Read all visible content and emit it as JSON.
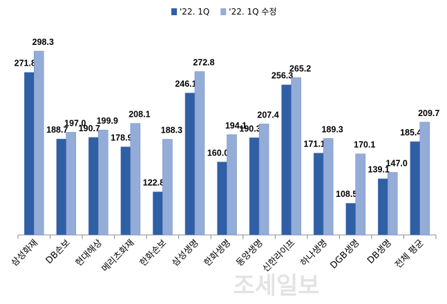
{
  "chart_data": {
    "type": "bar",
    "categories": [
      "삼성화재",
      "DB손보",
      "현대해상",
      "메리츠화재",
      "한화손보",
      "삼성생명",
      "한화생명",
      "동양생명",
      "신한라이프",
      "하나생명",
      "DGB생명",
      "DB생명",
      "전체 평균"
    ],
    "series": [
      {
        "name": "'22. 1Q",
        "color": "#2f5fa5",
        "values": [
          271.8,
          188.7,
          190.7,
          178.9,
          122.8,
          246.1,
          160.0,
          190.3,
          256.3,
          171.1,
          108.5,
          139.1,
          185.4
        ],
        "value_labels": [
          "271.8",
          "188.7",
          "190.7",
          "178.9",
          "122.8",
          "246.1",
          "160.0",
          "190.3",
          "256.3",
          "171.1",
          "108.5",
          "139.1",
          "185.4"
        ]
      },
      {
        "name": "'22. 1Q 수정",
        "color": "#94acd8",
        "values": [
          298.3,
          197.0,
          199.9,
          208.1,
          188.3,
          272.8,
          194.1,
          207.4,
          265.2,
          189.3,
          170.1,
          147.0,
          209.7
        ],
        "value_labels": [
          "298.3",
          "197.0",
          "199.9",
          "208.1",
          "188.3",
          "272.8",
          "194.1",
          "207.4",
          "265.2",
          "189.3",
          "170.1",
          "147.0",
          "209.7"
        ]
      }
    ],
    "ylim": [
      69,
      300
    ],
    "watermark": "조세일보"
  }
}
